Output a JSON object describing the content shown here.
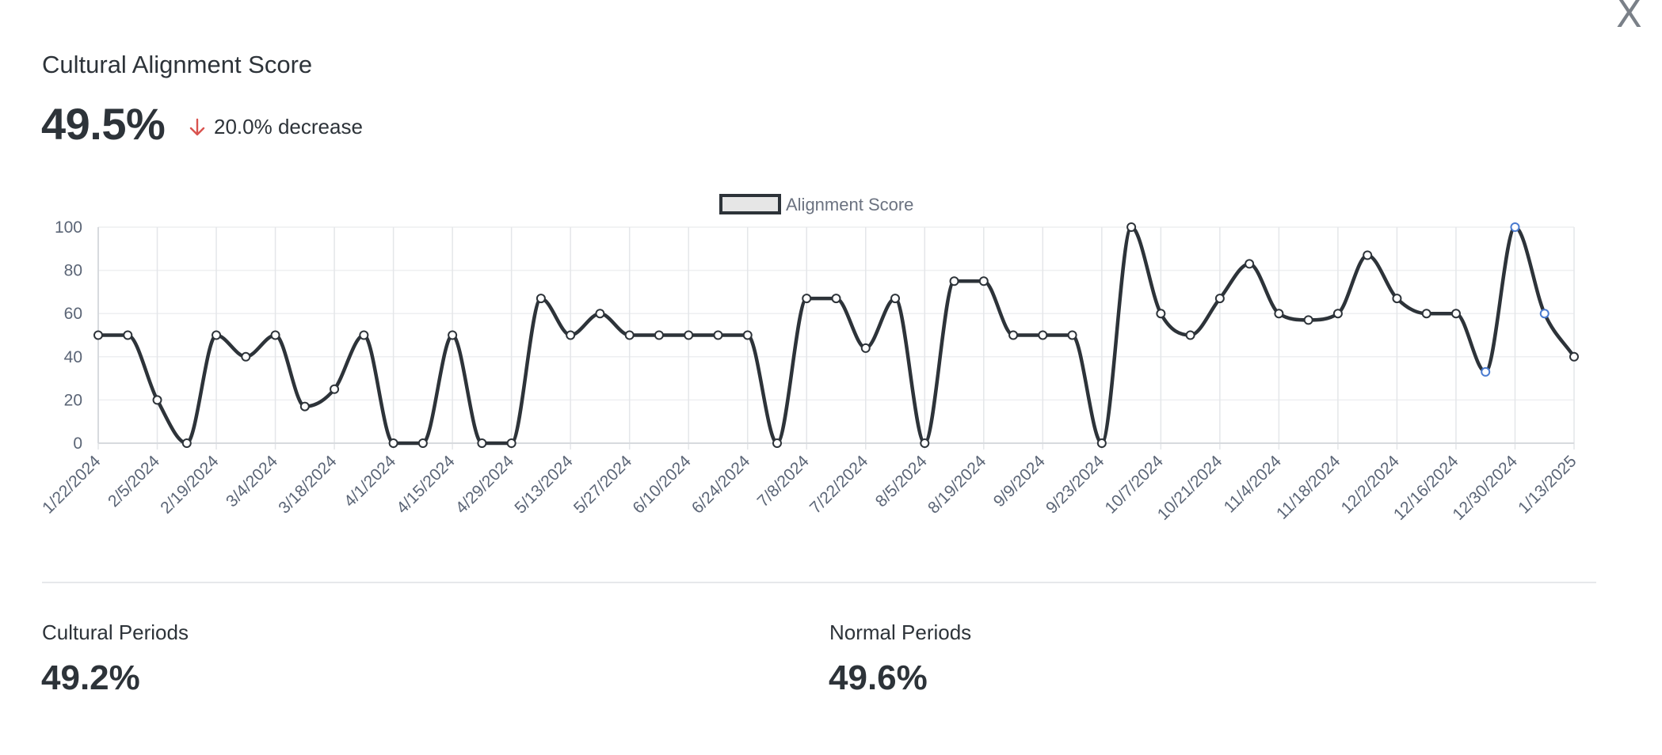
{
  "close_label": "X",
  "header": {
    "title": "Cultural Alignment Score",
    "value": "49.5%",
    "change": "20.0% decrease",
    "change_color": "#d9534f"
  },
  "stats": {
    "cultural_label": "Cultural Periods",
    "cultural_value": "49.2%",
    "normal_label": "Normal Periods",
    "normal_value": "49.6%"
  },
  "chart_data": {
    "type": "line",
    "title": "",
    "xlabel": "",
    "ylabel": "",
    "ylim": [
      0,
      100
    ],
    "yticks": [
      0,
      20,
      40,
      60,
      80,
      100
    ],
    "grid": true,
    "legend_position": "top-center",
    "categories": [
      "1/22/2024",
      "",
      "2/5/2024",
      "",
      "2/19/2024",
      "",
      "3/4/2024",
      "",
      "3/18/2024",
      "",
      "4/1/2024",
      "",
      "4/15/2024",
      "",
      "4/29/2024",
      "",
      "5/13/2024",
      "",
      "5/27/2024",
      "",
      "6/10/2024",
      "",
      "6/24/2024",
      "",
      "7/8/2024",
      "",
      "7/22/2024",
      "",
      "8/5/2024",
      "",
      "8/19/2024",
      "",
      "9/9/2024",
      "",
      "9/23/2024",
      "",
      "10/7/2024",
      "",
      "10/21/2024",
      "",
      "11/4/2024",
      "",
      "11/18/2024",
      "",
      "12/2/2024",
      "",
      "12/16/2024",
      "",
      "12/30/2024",
      "",
      "1/13/2025"
    ],
    "series": [
      {
        "name": "Alignment Score",
        "color": "#2d3339",
        "fill": "#e6e6e6",
        "values": [
          50,
          50,
          20,
          0,
          50,
          40,
          50,
          17,
          25,
          50,
          0,
          0,
          50,
          0,
          0,
          67,
          50,
          60,
          50,
          50,
          50,
          50,
          50,
          0,
          67,
          67,
          44,
          67,
          0,
          75,
          75,
          50,
          50,
          50,
          0,
          100,
          60,
          50,
          67,
          83,
          60,
          57,
          60,
          87,
          67,
          60,
          60,
          33,
          100,
          60,
          40
        ],
        "highlight_indices": [
          47,
          48,
          49
        ],
        "highlight_color": "#4a7bd0"
      }
    ]
  }
}
